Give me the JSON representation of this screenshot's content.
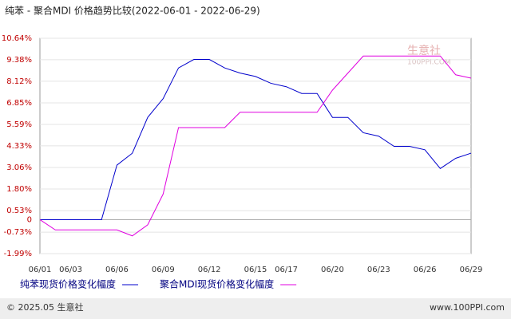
{
  "chart_data": {
    "type": "line",
    "title": "纯苯 - 聚合MDI 价格趋势比较(2022-06-01 - 2022-06-29)",
    "categories": [
      "06/01",
      null,
      "06/03",
      null,
      null,
      "06/06",
      null,
      null,
      "06/09",
      null,
      null,
      "06/12",
      null,
      null,
      "06/15",
      null,
      "06/17",
      null,
      null,
      "06/20",
      null,
      null,
      "06/23",
      null,
      null,
      "06/26",
      null,
      null,
      "06/29"
    ],
    "series": [
      {
        "name": "纯苯现货价格变化幅度",
        "color": "#0000cc",
        "values": [
          0,
          0,
          0,
          0,
          0,
          3.2,
          3.9,
          6.0,
          7.1,
          8.9,
          9.4,
          9.4,
          8.9,
          8.6,
          8.4,
          8.0,
          7.8,
          7.4,
          7.4,
          6.0,
          6.0,
          5.1,
          4.9,
          4.3,
          4.3,
          4.1,
          3.0,
          3.6,
          3.9
        ]
      },
      {
        "name": "聚合MDI现货价格变化幅度",
        "color": "#e000e0",
        "values": [
          0,
          -0.6,
          -0.6,
          -0.6,
          -0.6,
          -0.6,
          -0.95,
          -0.3,
          1.5,
          5.4,
          5.4,
          5.4,
          5.4,
          6.3,
          6.3,
          6.3,
          6.3,
          6.3,
          6.3,
          7.6,
          8.6,
          9.6,
          9.6,
          9.6,
          9.6,
          9.6,
          9.6,
          8.5,
          8.3
        ]
      }
    ],
    "ylim": [
      -1.99,
      10.64
    ],
    "yticks": [
      {
        "value": 10.64,
        "label": "10.64%"
      },
      {
        "value": 9.38,
        "label": "9.38%"
      },
      {
        "value": 8.12,
        "label": "8.12%"
      },
      {
        "value": 6.85,
        "label": "6.85%"
      },
      {
        "value": 5.59,
        "label": "5.59%"
      },
      {
        "value": 4.33,
        "label": "4.33%"
      },
      {
        "value": 3.06,
        "label": "3.06%"
      },
      {
        "value": 1.8,
        "label": "1.80%"
      },
      {
        "value": 0.53,
        "label": "0.53%"
      },
      0,
      {
        "value": -0.73,
        "label": "-0.73%"
      },
      {
        "value": -1.99,
        "label": "-1.99%"
      }
    ],
    "grid": true,
    "watermark": [
      "生意社",
      "100PPI.COM"
    ],
    "footer": {
      "left": "© 2025.05 生意社",
      "right": "www.100PPI.com"
    }
  }
}
